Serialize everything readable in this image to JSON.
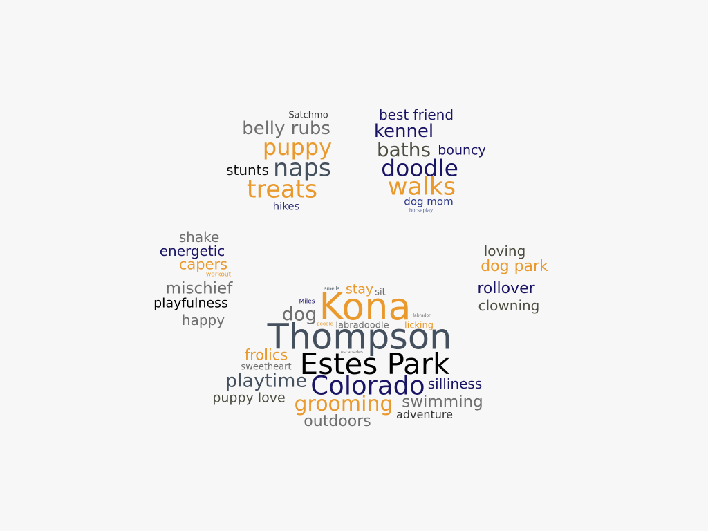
{
  "palette": {
    "orange": "#ea9a2d",
    "navy": "#1a1464",
    "slate": "#44505e",
    "gray": "#6e6e6e",
    "olive": "#4d4d42",
    "black": "#000000"
  },
  "words": [
    {
      "text": "Satchmo",
      "color": "#333333"
    },
    {
      "text": "belly rubs",
      "color": "#6e6e6e"
    },
    {
      "text": "puppy",
      "color": "#ea9a2d"
    },
    {
      "text": "stunts",
      "color": "#111111"
    },
    {
      "text": "naps",
      "color": "#44505e"
    },
    {
      "text": "treats",
      "color": "#ea9a2d"
    },
    {
      "text": "hikes",
      "color": "#2a2a6e"
    },
    {
      "text": "best friend",
      "color": "#1a1464"
    },
    {
      "text": "kennel",
      "color": "#1a1464"
    },
    {
      "text": "baths",
      "color": "#4d4d42"
    },
    {
      "text": "bouncy",
      "color": "#1a1464"
    },
    {
      "text": "doodle",
      "color": "#1a1464"
    },
    {
      "text": "walks",
      "color": "#ea9a2d"
    },
    {
      "text": "dog mom",
      "color": "#2e3a8a"
    },
    {
      "text": "horseplay",
      "color": "#5a6a9a"
    },
    {
      "text": "shake",
      "color": "#6e6e6e"
    },
    {
      "text": "energetic",
      "color": "#1a1464"
    },
    {
      "text": "capers",
      "color": "#ea9a2d"
    },
    {
      "text": "workout",
      "color": "#ea9a2d"
    },
    {
      "text": "mischief",
      "color": "#6e6e6e"
    },
    {
      "text": "playfulness",
      "color": "#000000"
    },
    {
      "text": "happy",
      "color": "#6e6e6e"
    },
    {
      "text": "loving",
      "color": "#4d4d42"
    },
    {
      "text": "dog park",
      "color": "#ea9a2d"
    },
    {
      "text": "rollover",
      "color": "#1a1464"
    },
    {
      "text": "clowning",
      "color": "#4d4d42"
    },
    {
      "text": "smells",
      "color": "#44505e"
    },
    {
      "text": "stay",
      "color": "#ea9a2d"
    },
    {
      "text": "sit",
      "color": "#6e6e6e"
    },
    {
      "text": "Kona",
      "color": "#ea9a2d"
    },
    {
      "text": "Miles",
      "color": "#1a1464"
    },
    {
      "text": "dog",
      "color": "#6e6e6e"
    },
    {
      "text": "labrador",
      "color": "#6e6e6e"
    },
    {
      "text": "poodle",
      "color": "#ea9a2d"
    },
    {
      "text": "labradoodle",
      "color": "#6e6e6e"
    },
    {
      "text": "licking",
      "color": "#ea9a2d"
    },
    {
      "text": "Thompson",
      "color": "#44505e"
    },
    {
      "text": "escapades",
      "color": "#6e6e6e"
    },
    {
      "text": "frolics",
      "color": "#ea9a2d"
    },
    {
      "text": "sweetheart",
      "color": "#6e6e6e"
    },
    {
      "text": "Estes Park",
      "color": "#000000"
    },
    {
      "text": "playtime",
      "color": "#44505e"
    },
    {
      "text": "Colorado",
      "color": "#1a1464"
    },
    {
      "text": "silliness",
      "color": "#1a1464"
    },
    {
      "text": "puppy love",
      "color": "#4d4d42"
    },
    {
      "text": "grooming",
      "color": "#ea9a2d"
    },
    {
      "text": "swimming",
      "color": "#6e6e6e"
    },
    {
      "text": "adventure",
      "color": "#333333"
    },
    {
      "text": "outdoors",
      "color": "#6e6e6e"
    }
  ]
}
